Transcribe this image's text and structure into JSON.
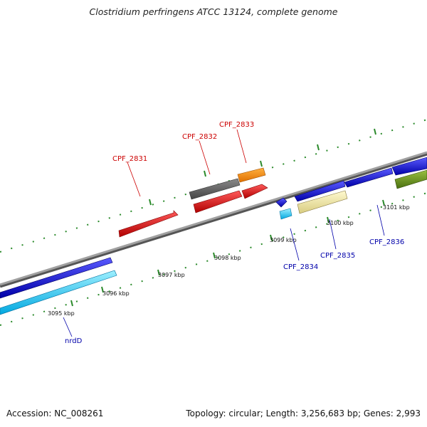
{
  "title": "Clostridium perfringens ATCC 13124, complete genome",
  "footer": {
    "accession": "Accession: NC_008261",
    "summary": "Topology: circular; Length: 3,256,683 bp; Genes: 2,993"
  },
  "colors": {
    "backbone": "#8a8a8a",
    "ticks": "#2a8a2a",
    "label_red": "#cc0000",
    "label_blue": "#0000aa"
  },
  "scale_labels": [
    "3095 kbp",
    "3096 kbp",
    "3097 kbp",
    "3098 kbp",
    "3099 kbp",
    "3100 kbp",
    "3101 kbp"
  ],
  "genes": [
    {
      "id": "CPF_2831",
      "color": "#e01010",
      "strand": "+"
    },
    {
      "id": "CPF_2832",
      "color": "#e01010",
      "strand": "+"
    },
    {
      "id": "CPF_2833",
      "color": "#e01010",
      "strand": "+"
    },
    {
      "id": "CPF_2834",
      "color": "#1a1aee",
      "strand": "-"
    },
    {
      "id": "CPF_2835",
      "color": "#1a1aee",
      "strand": "-"
    },
    {
      "id": "CPF_2836",
      "color": "#1a1aee",
      "strand": "-"
    },
    {
      "id": "nrdD",
      "color": "#1a1aee",
      "strand": "-"
    }
  ]
}
